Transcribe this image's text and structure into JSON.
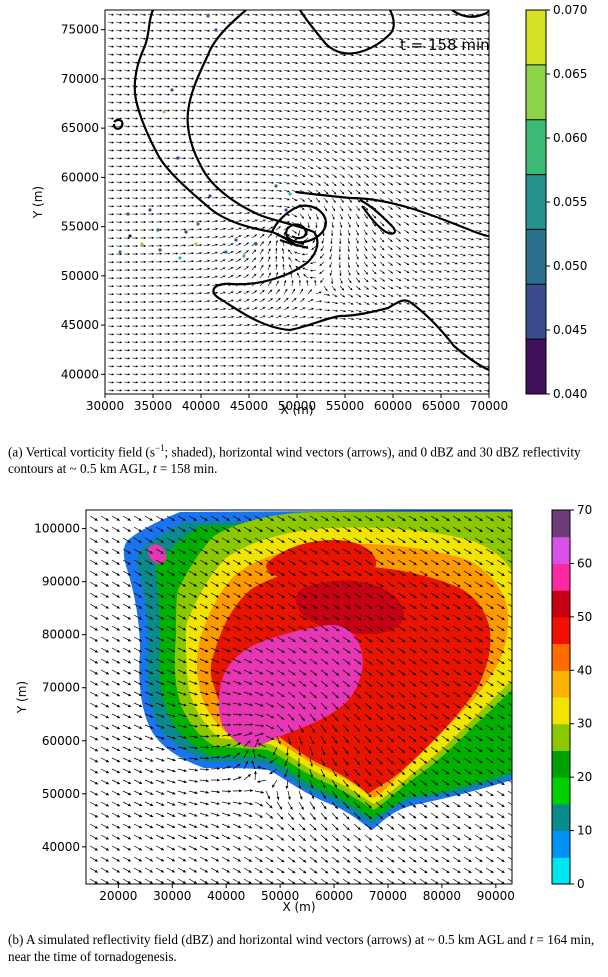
{
  "chart_data": [
    {
      "type": "heatmap",
      "panel": "a",
      "annotation": "t = 158 min",
      "xlabel": "X (m)",
      "ylabel": "Y (m)",
      "xlim": [
        30000,
        70000
      ],
      "ylim": [
        38000,
        77000
      ],
      "xticks": [
        "30000",
        "35000",
        "40000",
        "45000",
        "50000",
        "55000",
        "60000",
        "65000",
        "70000"
      ],
      "xtick_values": [
        30000,
        35000,
        40000,
        45000,
        50000,
        55000,
        60000,
        65000,
        70000
      ],
      "yticks": [
        "40000",
        "45000",
        "50000",
        "55000",
        "60000",
        "65000",
        "70000",
        "75000"
      ],
      "ytick_values": [
        40000,
        45000,
        50000,
        55000,
        60000,
        65000,
        70000,
        75000
      ],
      "colorbar": {
        "ticks": [
          "0.040",
          "0.045",
          "0.050",
          "0.055",
          "0.060",
          "0.065",
          "0.070"
        ],
        "range": [
          0.04,
          0.07
        ],
        "colors": [
          "#40105a",
          "#3b4c8c",
          "#2d708e",
          "#24938b",
          "#3bbb73",
          "#8ed449",
          "#d6e125"
        ]
      },
      "caption_prefix": "(a)  Vertical vorticity field (s",
      "caption_sup": "−1",
      "caption_mid": "; shaded), horizontal wind vectors (arrows), and 0 dBZ and 30 dBZ reflectivity contours at ~ 0.5 km AGL, ",
      "caption_t": "t",
      "caption_end": " = 158 min."
    },
    {
      "type": "heatmap",
      "panel": "b",
      "xlabel": "X (m)",
      "ylabel": "Y (m)",
      "xlim": [
        14000,
        93000
      ],
      "ylim": [
        33000,
        103500
      ],
      "xticks": [
        "20000",
        "30000",
        "40000",
        "50000",
        "60000",
        "70000",
        "80000",
        "90000"
      ],
      "xtick_values": [
        20000,
        30000,
        40000,
        50000,
        60000,
        70000,
        80000,
        90000
      ],
      "yticks": [
        "40000",
        "50000",
        "60000",
        "70000",
        "80000",
        "90000",
        "100000"
      ],
      "ytick_values": [
        40000,
        50000,
        60000,
        70000,
        80000,
        90000,
        100000
      ],
      "colorbar": {
        "ticks": [
          "0",
          "10",
          "20",
          "30",
          "40",
          "50",
          "60",
          "70"
        ],
        "range": [
          0,
          70
        ],
        "colors": [
          "#00e5f2",
          "#0093f5",
          "#0a8a8a",
          "#00d000",
          "#00a000",
          "#8cc800",
          "#f0e400",
          "#fdb400",
          "#ff6a00",
          "#f21000",
          "#c80014",
          "#ff28a0",
          "#d850e8",
          "#6e3c78"
        ]
      },
      "caption_prefix": "(b)  A simulated reflectivity field (dBZ) and horizontal wind vectors (arrows) at ~ 0.5 km AGL and ",
      "caption_t": "t",
      "caption_end": " = 164 min, near the time of tornadogenesis."
    }
  ]
}
